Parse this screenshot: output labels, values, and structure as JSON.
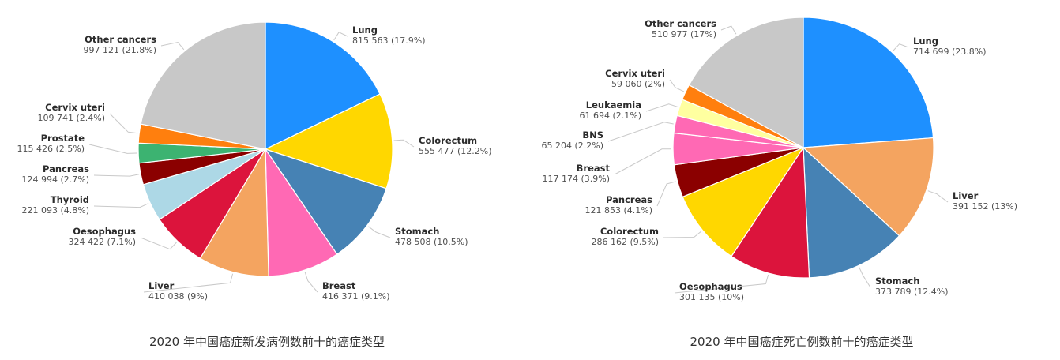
{
  "chart_data": [
    {
      "type": "pie",
      "title": "2020 年中国癌症新发病例数前十的癌症类型",
      "slices": [
        {
          "name": "Lung",
          "value": 815563,
          "value_label": "815 563 (17.9%)",
          "percent": 17.9,
          "color": "#1E90FF"
        },
        {
          "name": "Colorectum",
          "value": 555477,
          "value_label": "555 477 (12.2%)",
          "percent": 12.2,
          "color": "#FFD700"
        },
        {
          "name": "Stomach",
          "value": 478508,
          "value_label": "478 508 (10.5%)",
          "percent": 10.5,
          "color": "#4682B4"
        },
        {
          "name": "Breast",
          "value": 416371,
          "value_label": "416 371 (9.1%)",
          "percent": 9.1,
          "color": "#FF69B4"
        },
        {
          "name": "Liver",
          "value": 410038,
          "value_label": "410 038 (9%)",
          "percent": 9.0,
          "color": "#F4A460"
        },
        {
          "name": "Oesophagus",
          "value": 324422,
          "value_label": "324 422 (7.1%)",
          "percent": 7.1,
          "color": "#DC143C"
        },
        {
          "name": "Thyroid",
          "value": 221093,
          "value_label": "221 093 (4.8%)",
          "percent": 4.8,
          "color": "#ADD8E6"
        },
        {
          "name": "Pancreas",
          "value": 124994,
          "value_label": "124 994 (2.7%)",
          "percent": 2.7,
          "color": "#8B0000"
        },
        {
          "name": "Prostate",
          "value": 115426,
          "value_label": "115 426 (2.5%)",
          "percent": 2.5,
          "color": "#3CB371"
        },
        {
          "name": "Cervix uteri",
          "value": 109741,
          "value_label": "109 741 (2.4%)",
          "percent": 2.4,
          "color": "#FF7F0E"
        },
        {
          "name": "Other cancers",
          "value": 997121,
          "value_label": "997 121 (21.8%)",
          "percent": 21.8,
          "color": "#C8C8C8"
        }
      ]
    },
    {
      "type": "pie",
      "title": "2020 年中国癌症死亡例数前十的癌症类型",
      "slices": [
        {
          "name": "Lung",
          "value": 714699,
          "value_label": "714 699 (23.8%)",
          "percent": 23.8,
          "color": "#1E90FF"
        },
        {
          "name": "Liver",
          "value": 391152,
          "value_label": "391 152 (13%)",
          "percent": 13.0,
          "color": "#F4A460"
        },
        {
          "name": "Stomach",
          "value": 373789,
          "value_label": "373 789 (12.4%)",
          "percent": 12.4,
          "color": "#4682B4"
        },
        {
          "name": "Oesophagus",
          "value": 301135,
          "value_label": "301 135 (10%)",
          "percent": 10.0,
          "color": "#DC143C"
        },
        {
          "name": "Colorectum",
          "value": 286162,
          "value_label": "286 162 (9.5%)",
          "percent": 9.5,
          "color": "#FFD700"
        },
        {
          "name": "Pancreas",
          "value": 121853,
          "value_label": "121 853 (4.1%)",
          "percent": 4.1,
          "color": "#8B0000"
        },
        {
          "name": "Breast",
          "value": 117174,
          "value_label": "117 174 (3.9%)",
          "percent": 3.9,
          "color": "#FF69B4"
        },
        {
          "name": "BNS",
          "value": 65204,
          "value_label": "65 204 (2.2%)",
          "percent": 2.2,
          "color": "#FF69B4"
        },
        {
          "name": "Leukaemia",
          "value": 61694,
          "value_label": "61 694 (2.1%)",
          "percent": 2.1,
          "color": "#FFFFA0"
        },
        {
          "name": "Cervix uteri",
          "value": 59060,
          "value_label": "59 060 (2%)",
          "percent": 2.0,
          "color": "#FF7F0E"
        },
        {
          "name": "Other cancers",
          "value": 510977,
          "value_label": "510 977 (17%)",
          "percent": 17.0,
          "color": "#C8C8C8"
        }
      ]
    }
  ]
}
